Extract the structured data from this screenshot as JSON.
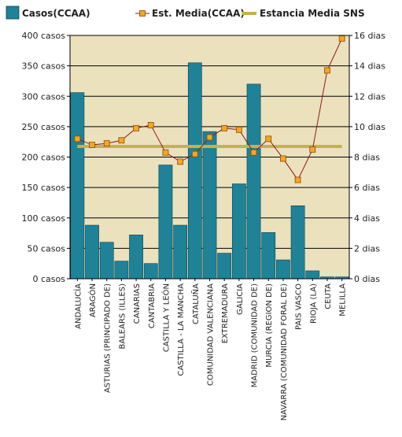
{
  "chart_data": {
    "type": "bar",
    "legend": {
      "position": "top",
      "items": [
        {
          "key": "casos",
          "label": "Casos(CCAA)"
        },
        {
          "key": "estancia",
          "label": "Est.  Media(CCAA)"
        },
        {
          "key": "sns",
          "label": "Estancia Media SNS"
        }
      ]
    },
    "categories": [
      "ANDALUCÍA",
      "ARAGÓN",
      "ASTURIAS (PRINCIPADO DE)",
      "BALEARS (ILLES)",
      "CANARIAS",
      "CANTABRIA",
      "CASTILLA Y LEÓN",
      "CASTILLA - LA MANCHA",
      "CATALUÑA",
      "COMUNIDAD VALENCIANA",
      "EXTREMADURA",
      "GALICIA",
      "MADRID (COMUNIDAD DE)",
      "MURCIA (REGION DE)",
      "NAVARRA (COMUNIDAD FORAL DE)",
      "PAIS VASCO",
      "RIOJA (LA)",
      "CEUTA",
      "MELILLA"
    ],
    "series": [
      {
        "name": "Casos(CCAA)",
        "type": "bar",
        "axis": "left",
        "color": "#1f8297",
        "values": [
          306,
          88,
          60,
          29,
          72,
          25,
          187,
          88,
          355,
          242,
          42,
          156,
          320,
          76,
          31,
          120,
          13,
          3,
          3
        ]
      },
      {
        "name": "Est.  Media(CCAA)",
        "type": "line",
        "axis": "right",
        "line_color": "#8b1a1a",
        "marker_color": "#f5a623",
        "values": [
          9.2,
          8.8,
          8.9,
          9.1,
          9.9,
          10.1,
          8.3,
          7.7,
          8.2,
          9.3,
          9.9,
          9.8,
          8.3,
          9.2,
          7.9,
          6.5,
          8.5,
          13.7,
          15.8
        ]
      },
      {
        "name": "Estancia Media SNS",
        "type": "hline",
        "axis": "right",
        "color": "#c4b24e",
        "value": 8.7
      }
    ],
    "y_left": {
      "ylim": [
        0,
        400
      ],
      "ticks": [
        {
          "v": 0,
          "label": "0 casos"
        },
        {
          "v": 50,
          "label": "50 casos"
        },
        {
          "v": 100,
          "label": "100 casos"
        },
        {
          "v": 150,
          "label": "150 casos"
        },
        {
          "v": 200,
          "label": "200 casos"
        },
        {
          "v": 250,
          "label": "250 casos"
        },
        {
          "v": 300,
          "label": "300 casos"
        },
        {
          "v": 350,
          "label": "350 casos"
        },
        {
          "v": 400,
          "label": "400 casos"
        }
      ]
    },
    "y_right": {
      "ylim": [
        0,
        16
      ],
      "ticks": [
        {
          "v": 0,
          "label": "0 dias"
        },
        {
          "v": 2,
          "label": "2 dias"
        },
        {
          "v": 4,
          "label": "4 dias"
        },
        {
          "v": 6,
          "label": "6 dias"
        },
        {
          "v": 8,
          "label": "8 dias"
        },
        {
          "v": 10,
          "label": "10 dias"
        },
        {
          "v": 12,
          "label": "12 dias"
        },
        {
          "v": 14,
          "label": "14 dias"
        },
        {
          "v": 16,
          "label": "16 dias"
        }
      ]
    },
    "grid": true,
    "plot_background": "#ebe1bd"
  }
}
